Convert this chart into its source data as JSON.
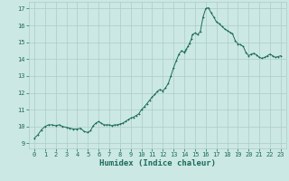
{
  "xlabel": "Humidex (Indice chaleur)",
  "xlim": [
    -0.5,
    23.5
  ],
  "ylim": [
    8.7,
    17.4
  ],
  "yticks": [
    9,
    10,
    11,
    12,
    13,
    14,
    15,
    16,
    17
  ],
  "xticks": [
    0,
    1,
    2,
    3,
    4,
    5,
    6,
    7,
    8,
    9,
    10,
    11,
    12,
    13,
    14,
    15,
    16,
    17,
    18,
    19,
    20,
    21,
    22,
    23
  ],
  "bg_color": "#cce8e4",
  "grid_color": "#aaccc8",
  "line_color": "#1a6b5a",
  "x": [
    0,
    0.33,
    0.66,
    1.0,
    1.33,
    1.66,
    2.0,
    2.33,
    2.66,
    3.0,
    3.33,
    3.66,
    4.0,
    4.33,
    4.66,
    5.0,
    5.25,
    5.5,
    5.75,
    6.0,
    6.25,
    6.5,
    6.75,
    7.0,
    7.25,
    7.5,
    7.75,
    8.0,
    8.25,
    8.5,
    8.75,
    9.0,
    9.25,
    9.5,
    9.75,
    10.0,
    10.25,
    10.5,
    10.75,
    11.0,
    11.25,
    11.5,
    11.75,
    12.0,
    12.25,
    12.5,
    12.75,
    13.0,
    13.25,
    13.5,
    13.75,
    14.0,
    14.1,
    14.2,
    14.33,
    14.5,
    14.66,
    14.75,
    15.0,
    15.25,
    15.5,
    15.75,
    16.0,
    16.25,
    16.5,
    16.75,
    17.0,
    17.25,
    17.5,
    17.75,
    18.0,
    18.25,
    18.5,
    18.75,
    19.0,
    19.25,
    19.5,
    19.75,
    20.0,
    20.25,
    20.5,
    20.75,
    21.0,
    21.25,
    21.5,
    21.75,
    22.0,
    22.25,
    22.5,
    22.75,
    23.0
  ],
  "y": [
    9.3,
    9.5,
    9.8,
    10.0,
    10.1,
    10.1,
    10.05,
    10.1,
    10.0,
    9.95,
    9.9,
    9.85,
    9.85,
    9.9,
    9.7,
    9.65,
    9.75,
    10.05,
    10.2,
    10.3,
    10.2,
    10.1,
    10.1,
    10.1,
    10.05,
    10.1,
    10.1,
    10.15,
    10.2,
    10.3,
    10.4,
    10.5,
    10.55,
    10.65,
    10.75,
    11.0,
    11.15,
    11.35,
    11.55,
    11.75,
    11.9,
    12.1,
    12.2,
    12.1,
    12.3,
    12.55,
    13.0,
    13.5,
    13.9,
    14.3,
    14.5,
    14.4,
    14.5,
    14.6,
    14.75,
    14.95,
    15.2,
    15.45,
    15.55,
    15.45,
    15.65,
    16.5,
    17.0,
    17.05,
    16.75,
    16.5,
    16.2,
    16.1,
    15.95,
    15.8,
    15.7,
    15.6,
    15.5,
    15.1,
    14.9,
    14.85,
    14.75,
    14.4,
    14.2,
    14.3,
    14.35,
    14.25,
    14.1,
    14.05,
    14.1,
    14.2,
    14.3,
    14.2,
    14.1,
    14.15,
    14.2
  ]
}
